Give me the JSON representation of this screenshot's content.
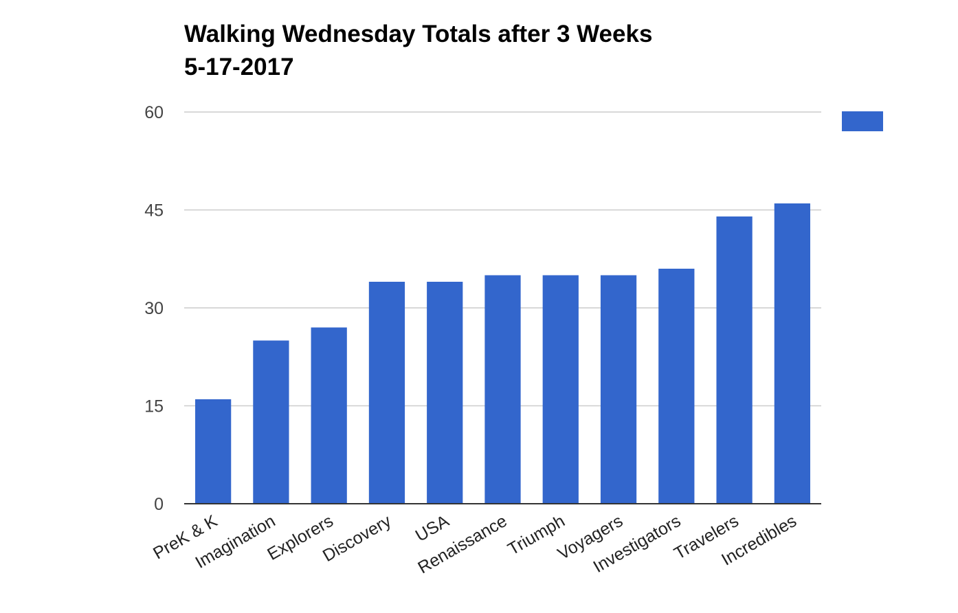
{
  "chart_data": {
    "type": "bar",
    "title": "Walking Wednesday Totals after 3 Weeks",
    "subtitle": "5-17-2017",
    "xlabel": "",
    "ylabel": "",
    "categories": [
      "PreK & K",
      "Imagination",
      "Explorers",
      "Discovery",
      "USA",
      "Renaissance",
      "Triumph",
      "Voyagers",
      "Investigators",
      "Travelers",
      "Incredibles"
    ],
    "series": [
      {
        "name": "",
        "color": "#3366cc",
        "values": [
          16,
          25,
          27,
          34,
          34,
          35,
          35,
          35,
          36,
          44,
          46
        ]
      }
    ],
    "ylim": [
      0,
      60
    ],
    "yticks": [
      "0",
      "15",
      "30",
      "45",
      "60"
    ],
    "grid": true,
    "legend": "top-right"
  }
}
